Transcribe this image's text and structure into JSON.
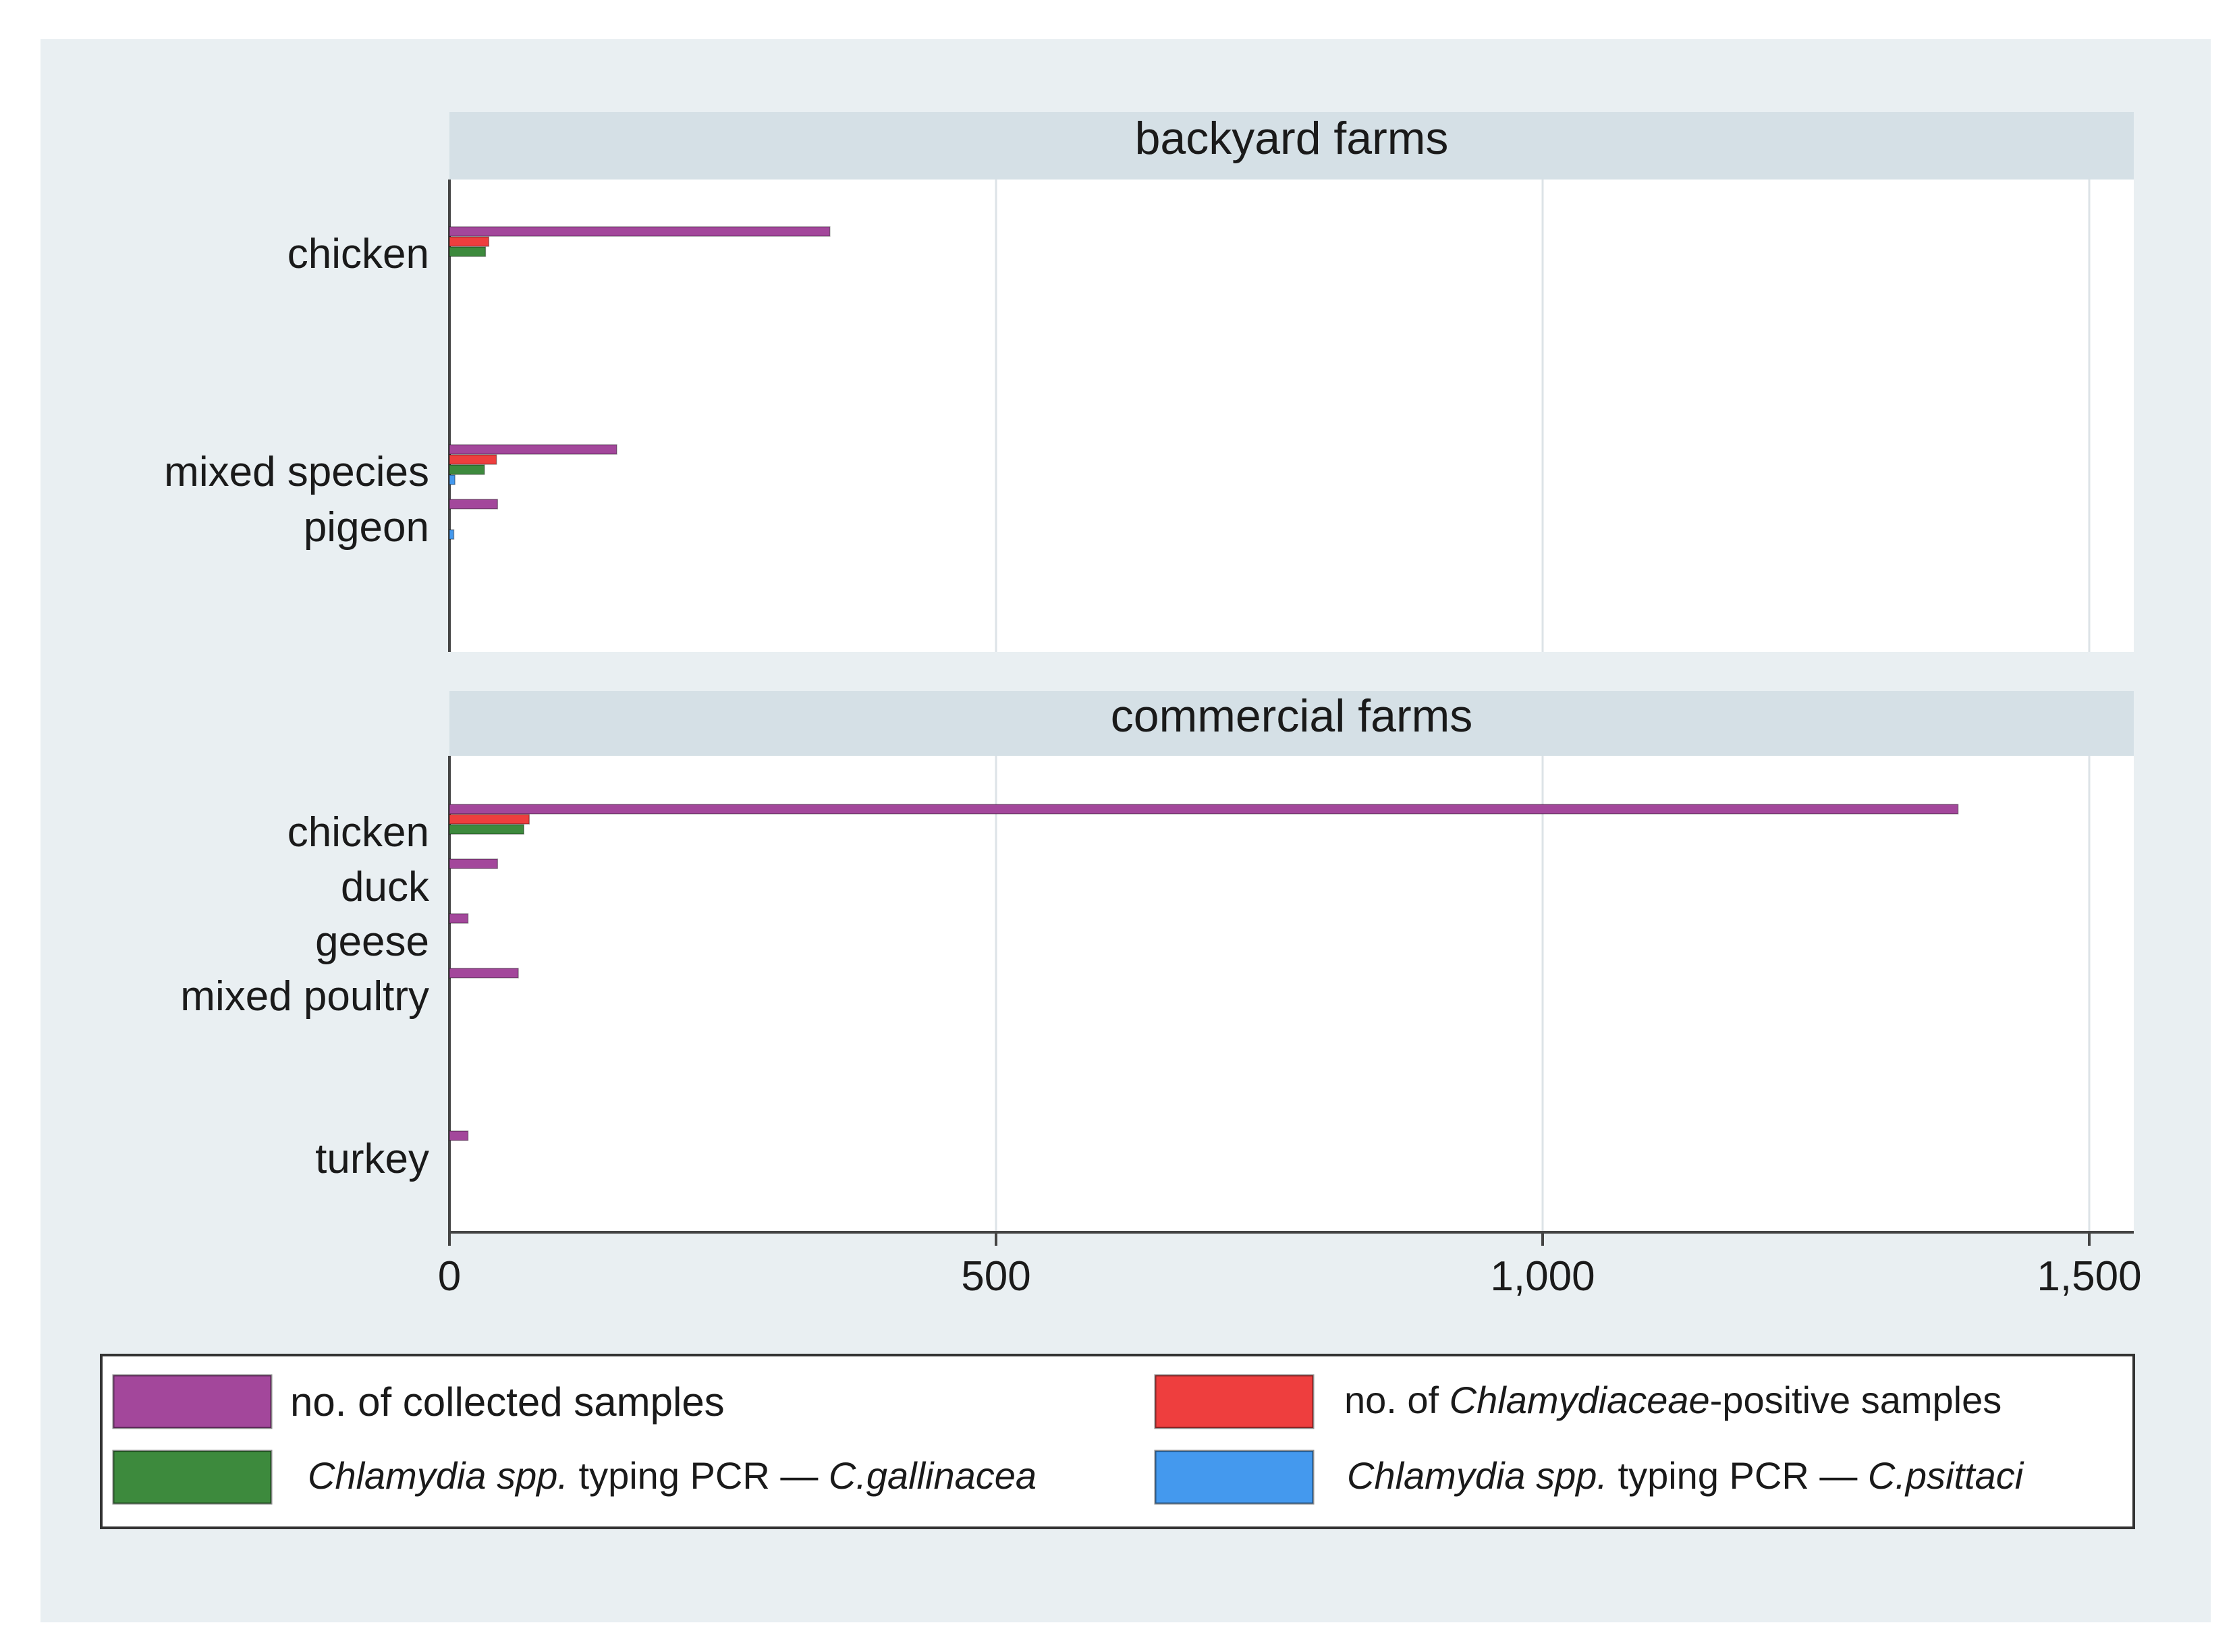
{
  "chart_data": {
    "type": "bar",
    "orientation": "horizontal",
    "xlim": [
      0,
      1500
    ],
    "xticks": [
      "0",
      "500",
      "1,000",
      "1,500"
    ],
    "grid": true,
    "legend_position": "bottom",
    "colors": {
      "collected": "#a3479b",
      "chlamydiaceae": "#ee3e3e",
      "gallinacea": "#3d8a3d",
      "psittaci": "#4499ee",
      "background": "#e9eff2",
      "panel_header": "#d5e0e6"
    },
    "series_keys": [
      "collected",
      "chlamydiaceae",
      "gallinacea",
      "psittaci"
    ],
    "panels": [
      {
        "title": "backyard farms",
        "categories": [
          {
            "label": "chicken",
            "values": {
              "collected": 348,
              "chlamydiaceae": 36,
              "gallinacea": 33,
              "psittaci": 0
            }
          },
          {
            "label": "mixed species",
            "values": {
              "collected": 153,
              "chlamydiaceae": 43,
              "gallinacea": 32,
              "psittaci": 5
            }
          },
          {
            "label": "pigeon",
            "values": {
              "collected": 44,
              "chlamydiaceae": 0,
              "gallinacea": 0,
              "psittaci": 4
            }
          }
        ]
      },
      {
        "title": "commercial farms",
        "categories": [
          {
            "label": "chicken",
            "values": {
              "collected": 1380,
              "chlamydiaceae": 73,
              "gallinacea": 68,
              "psittaci": 0
            }
          },
          {
            "label": "duck",
            "values": {
              "collected": 44,
              "chlamydiaceae": 0,
              "gallinacea": 0,
              "psittaci": 0
            }
          },
          {
            "label": "geese",
            "values": {
              "collected": 17,
              "chlamydiaceae": 0,
              "gallinacea": 0,
              "psittaci": 0
            }
          },
          {
            "label": "mixed poultry",
            "values": {
              "collected": 63,
              "chlamydiaceae": 0,
              "gallinacea": 0,
              "psittaci": 0
            }
          },
          {
            "label": "turkey",
            "values": {
              "collected": 17,
              "chlamydiaceae": 0,
              "gallinacea": 0,
              "psittaci": 0
            }
          }
        ]
      }
    ],
    "legend": [
      {
        "key": "collected",
        "parts": [
          {
            "text": "no. of collected samples",
            "italic": false
          }
        ]
      },
      {
        "key": "chlamydiaceae",
        "parts": [
          {
            "text": "no.  of ",
            "italic": false
          },
          {
            "text": "Chlamydiaceae",
            "italic": true
          },
          {
            "text": "-positive samples",
            "italic": false
          }
        ]
      },
      {
        "key": "gallinacea",
        "parts": [
          {
            "text": "Chlamydia spp.",
            "italic": true
          },
          {
            "text": " typing  PCR — ",
            "italic": false
          },
          {
            "text": "C.gallinacea",
            "italic": true
          }
        ]
      },
      {
        "key": "psittaci",
        "parts": [
          {
            "text": "Chlamydia spp.",
            "italic": true
          },
          {
            "text": " typing  PCR — ",
            "italic": false
          },
          {
            "text": "C.psittaci",
            "italic": true
          }
        ]
      }
    ]
  }
}
